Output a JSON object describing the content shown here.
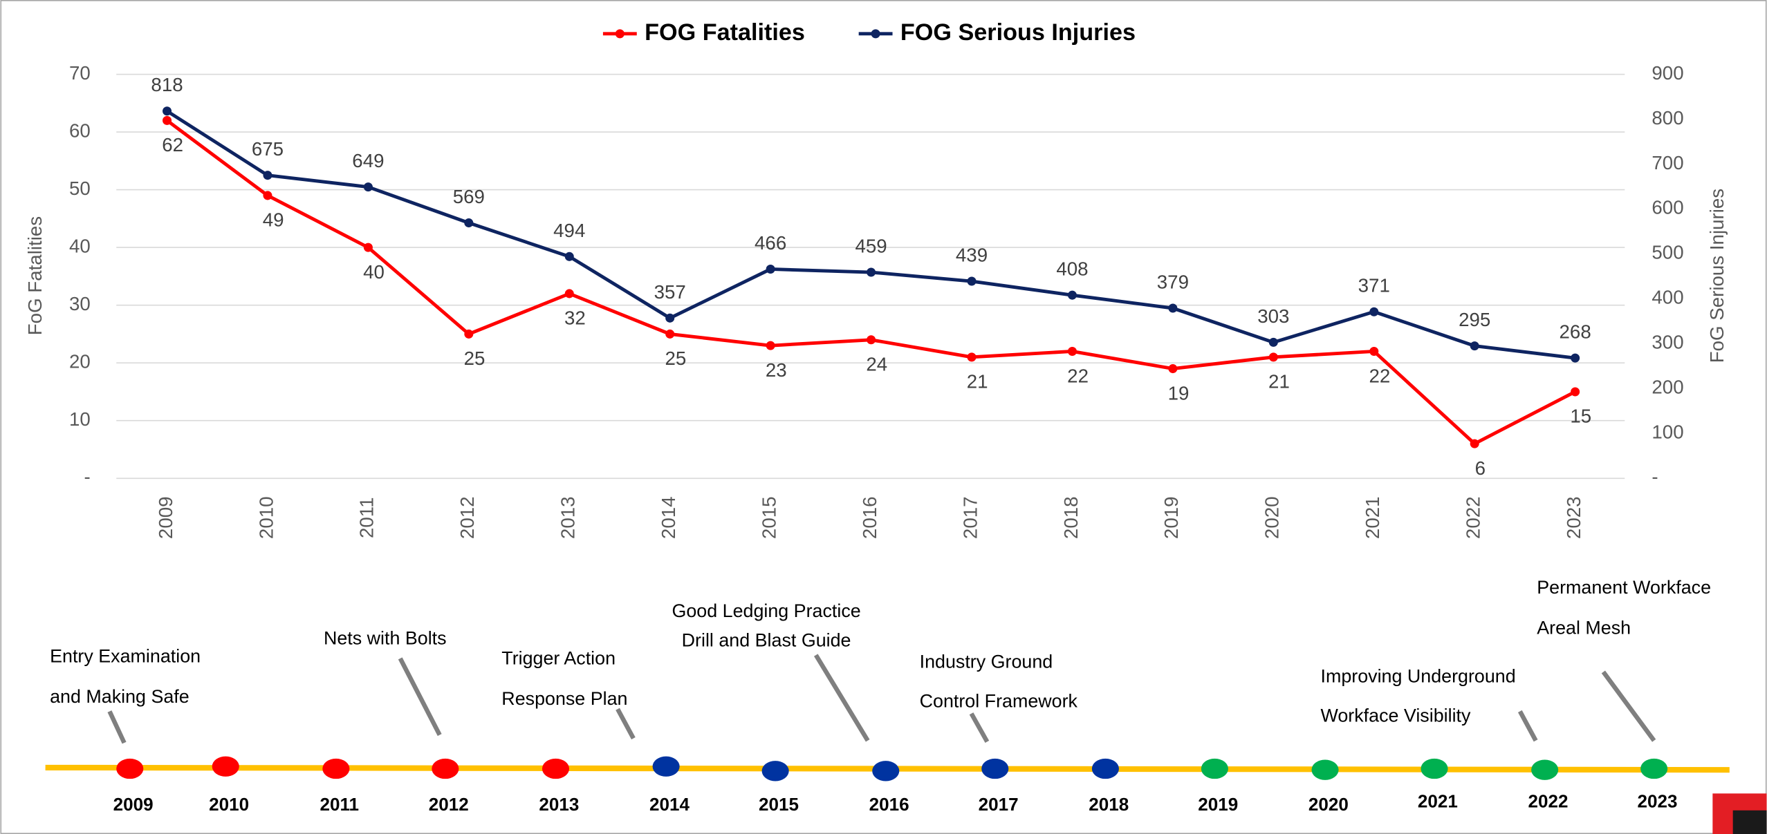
{
  "chart_data": {
    "type": "line",
    "categories": [
      "2009",
      "2010",
      "2011",
      "2012",
      "2013",
      "2014",
      "2015",
      "2016",
      "2017",
      "2018",
      "2019",
      "2020",
      "2021",
      "2022",
      "2023"
    ],
    "series": [
      {
        "name": "FOG Fatalities",
        "color": "#ff0000",
        "values": [
          62,
          49,
          40,
          25,
          32,
          25,
          23,
          24,
          21,
          22,
          19,
          21,
          22,
          6,
          15
        ]
      },
      {
        "name": "FOG Serious Injuries",
        "color": "#0e2461",
        "axis": "y2",
        "values": [
          818,
          675,
          649,
          569,
          494,
          357,
          466,
          459,
          439,
          408,
          379,
          303,
          371,
          295,
          268
        ]
      }
    ],
    "ylabel": "FoG Fatalities",
    "y2label": "FoG Serious Injuries",
    "ylim": [
      0,
      70
    ],
    "yticks": [
      {
        "value": 0,
        "label": "-"
      },
      10,
      20,
      30,
      40,
      50,
      60,
      70
    ],
    "y2lim": [
      0,
      900
    ],
    "y2ticks": [
      {
        "value": 0,
        "label": "-"
      },
      100,
      200,
      300,
      400,
      500,
      600,
      700,
      800,
      900
    ],
    "grid": true,
    "legend": "top"
  },
  "timeline": {
    "years": [
      "2009",
      "2010",
      "2011",
      "2012",
      "2013",
      "2014",
      "2015",
      "2016",
      "2017",
      "2018",
      "2019",
      "2020",
      "2021",
      "2022",
      "2023"
    ],
    "dot_colors": [
      "#ff0000",
      "#ff0000",
      "#ff0000",
      "#ff0000",
      "#ff0000",
      "#0033a0",
      "#0033a0",
      "#0033a0",
      "#0033a0",
      "#0033a0",
      "#00b050",
      "#00b050",
      "#00b050",
      "#00b050",
      "#00b050"
    ],
    "events": [
      {
        "lines": [
          "Entry Examination",
          "and Making Safe"
        ]
      },
      {
        "lines": [
          "Nets with Bolts"
        ]
      },
      {
        "lines": [
          "Trigger Action",
          "Response Plan"
        ]
      },
      {
        "lines": [
          "Good Ledging Practice",
          "Drill and Blast Guide"
        ]
      },
      {
        "lines": [
          "Industry Ground",
          "Control Framework"
        ]
      },
      {
        "lines": [
          "Improving Underground",
          "Workface Visibility"
        ]
      },
      {
        "lines": [
          "Permanent Workface",
          "Areal Mesh"
        ]
      }
    ]
  }
}
